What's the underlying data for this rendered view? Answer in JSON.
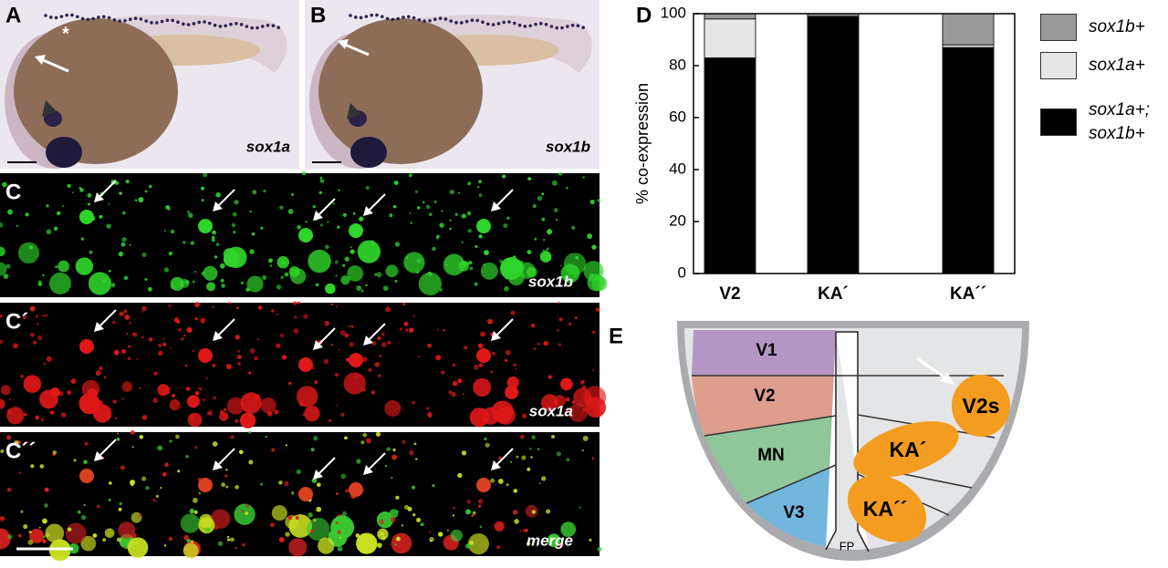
{
  "panels": [
    {
      "letter": "A",
      "label": "sox1a",
      "mark": "*"
    },
    {
      "letter": "B",
      "label": "sox1b"
    },
    {
      "letter": "C",
      "label": "sox1b"
    },
    {
      "letter": "C´",
      "label": "sox1a"
    },
    {
      "letter": "C´´",
      "label": "merge"
    }
  ],
  "chart_data": {
    "type": "bar",
    "panel": "D",
    "ylabel": "% co-expression",
    "categories": [
      "V2",
      "KA´",
      "KA´´"
    ],
    "series": [
      {
        "name": "sox1a+; sox1b+",
        "color": "#000000",
        "values": [
          83,
          99,
          87
        ]
      },
      {
        "name": "sox1a+",
        "color": "#e6e6e6",
        "values": [
          15,
          0,
          1
        ]
      },
      {
        "name": "sox1b+",
        "color": "#999999",
        "values": [
          2,
          1,
          12
        ]
      }
    ],
    "stacked": true,
    "ylim": [
      0,
      100
    ],
    "yticks": [
      0,
      20,
      40,
      60,
      80,
      100
    ]
  },
  "diagram": {
    "panel": "E",
    "regions": [
      "V1",
      "V2",
      "MN",
      "V3",
      "FP"
    ],
    "cells": [
      "V2s",
      "KA´",
      "KA´´"
    ]
  }
}
